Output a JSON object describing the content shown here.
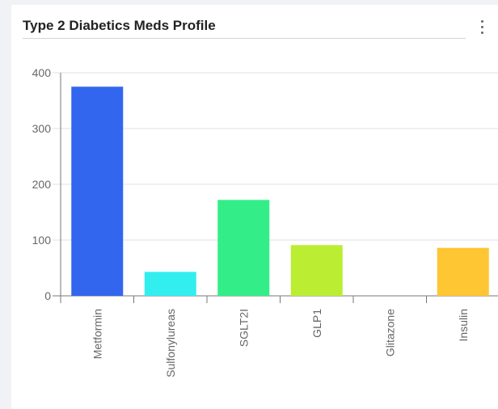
{
  "card": {
    "title": "Type 2 Diabetics Meds Profile",
    "menu_icon": "more-vertical-icon"
  },
  "chart_data": {
    "type": "bar",
    "title": "Type 2 Diabetics Meds Profile",
    "xlabel": "",
    "ylabel": "",
    "categories": [
      "Metformin",
      "Sulfonylureas",
      "SGLT2I",
      "GLP1",
      "Glitazone",
      "Insulin"
    ],
    "values": [
      375,
      43,
      172,
      91,
      0,
      86
    ],
    "colors": [
      "#3366ee",
      "#33eeee",
      "#33ee88",
      "#bbee33",
      "#ee9933",
      "#ffc633"
    ],
    "ylim": [
      0,
      400
    ],
    "yticks": [
      0,
      100,
      200,
      300,
      400
    ],
    "grid": true,
    "legend": "none"
  }
}
